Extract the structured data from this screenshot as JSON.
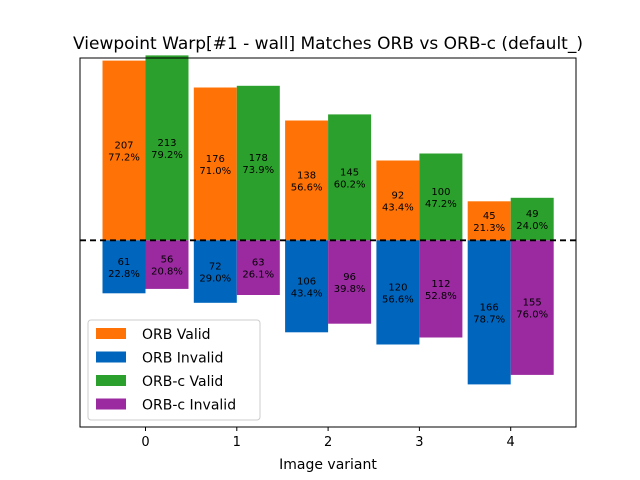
{
  "chart_data": {
    "type": "bar",
    "title": "Viewpoint Warp[#1 - wall] Matches ORB vs ORB-c (default_)",
    "xlabel": "Image variant",
    "ylabel": "",
    "categories": [
      "0",
      "1",
      "2",
      "3",
      "4"
    ],
    "ylim": [
      -215,
      210
    ],
    "baseline_style": "dashed",
    "legend_position": "lower-left",
    "series": [
      {
        "name": "ORB Valid",
        "color": "#ff7306",
        "direction": "up",
        "group": "ORB",
        "values": [
          207,
          176,
          138,
          92,
          45
        ],
        "labels": [
          "207\n77.2%",
          "176\n71.0%",
          "138\n56.6%",
          "92\n43.4%",
          "45\n21.3%"
        ]
      },
      {
        "name": "ORB Invalid",
        "color": "#0065bd",
        "direction": "down",
        "group": "ORB",
        "values": [
          61,
          72,
          106,
          120,
          166
        ],
        "labels": [
          "61\n22.8%",
          "72\n29.0%",
          "106\n43.4%",
          "120\n56.6%",
          "166\n78.7%"
        ]
      },
      {
        "name": "ORB-c Valid",
        "color": "#2ca02c",
        "direction": "up",
        "group": "ORB-c",
        "values": [
          213,
          178,
          145,
          100,
          49
        ],
        "labels": [
          "213\n79.2%",
          "178\n73.9%",
          "145\n60.2%",
          "100\n47.2%",
          "49\n24.0%"
        ]
      },
      {
        "name": "ORB-c Invalid",
        "color": "#9b2aa0",
        "direction": "down",
        "group": "ORB-c",
        "values": [
          56,
          63,
          96,
          112,
          155
        ],
        "labels": [
          "56\n20.8%",
          "63\n26.1%",
          "96\n39.8%",
          "112\n52.8%",
          "155\n76.0%"
        ]
      }
    ]
  }
}
